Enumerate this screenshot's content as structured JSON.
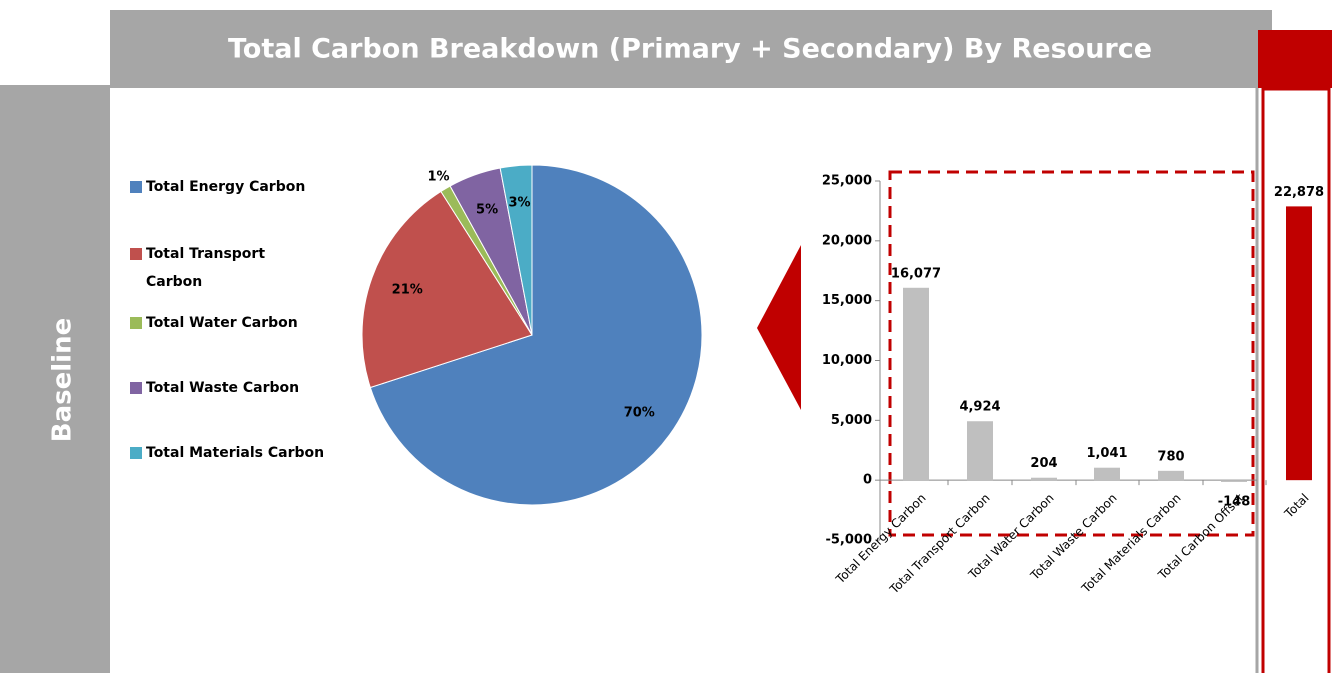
{
  "header": {
    "title": "Total Carbon Breakdown (Primary + Secondary) By Resource"
  },
  "side_label": "Baseline",
  "chart_data": [
    {
      "type": "pie",
      "categories": [
        "Total Energy Carbon",
        "Total Transport Carbon",
        "Total Water Carbon",
        "Total Waste Carbon",
        "Total Materials Carbon"
      ],
      "values": [
        70,
        21,
        1,
        5,
        3
      ],
      "value_labels": [
        "70%",
        "21%",
        "1%",
        "5%",
        "3%"
      ],
      "colors": [
        "#4f81bd",
        "#c0504d",
        "#9bbb59",
        "#8064a2",
        "#4bacc6"
      ],
      "legend": "left"
    },
    {
      "type": "bar",
      "categories": [
        "Total Energy Carbon",
        "Total Transport Carbon",
        "Total Water Carbon",
        "Total Waste Carbon",
        "Total Materials Carbon",
        "Total Carbon Offset",
        "Total"
      ],
      "values": [
        16077,
        4924,
        204,
        1041,
        780,
        -148,
        22878
      ],
      "value_labels": [
        "16,077",
        "4,924",
        "204",
        "1,041",
        "780",
        "-148",
        "22,878"
      ],
      "colors": [
        "#bfbfbf",
        "#bfbfbf",
        "#bfbfbf",
        "#bfbfbf",
        "#bfbfbf",
        "#bfbfbf",
        "#c00000"
      ],
      "ylim": [
        -5000,
        25000
      ],
      "yticks": [
        {
          "value": -5000,
          "label": "-5,000"
        },
        0,
        {
          "value": 5000,
          "label": "5,000"
        },
        {
          "value": 10000,
          "label": "10,000"
        },
        {
          "value": 15000,
          "label": "15,000"
        },
        {
          "value": 20000,
          "label": "20,000"
        },
        {
          "value": 25000,
          "label": "25,000"
        }
      ]
    }
  ]
}
